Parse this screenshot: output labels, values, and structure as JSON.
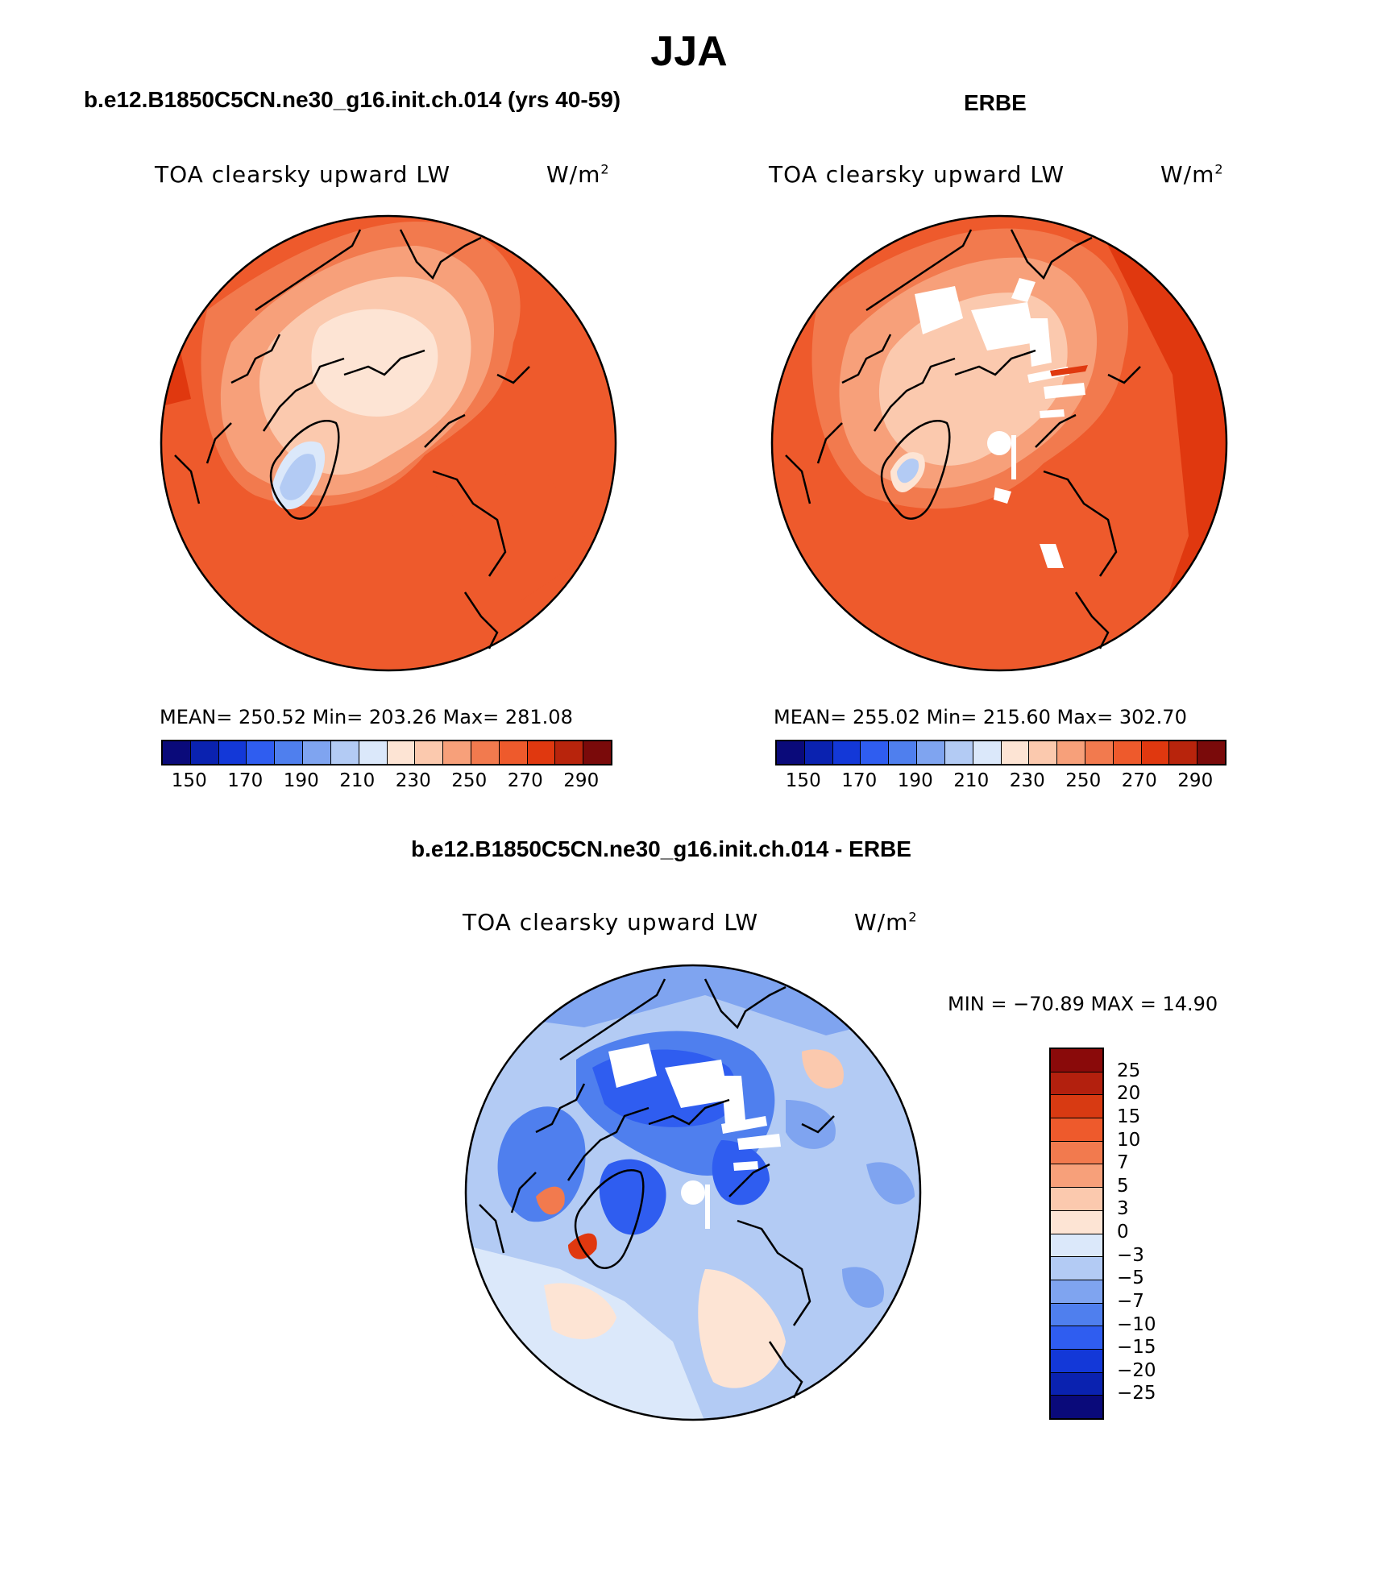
{
  "main_title": "JJA",
  "panels": {
    "model": {
      "heading": "b.e12.B1850C5CN.ne30_g16.init.ch.014 (yrs 40-59)",
      "field_label": "TOA clearsky upward LW",
      "units": "W/m",
      "units_sup": "2",
      "stats": "MEAN= 250.52   Min= 203.26   Max= 281.08"
    },
    "obs": {
      "heading": "ERBE",
      "field_label": "TOA clearsky upward LW",
      "units": "W/m",
      "units_sup": "2",
      "stats": "MEAN= 255.02   Min= 215.60   Max= 302.70"
    },
    "diff": {
      "heading": "b.e12.B1850C5CN.ne30_g16.init.ch.014 - ERBE",
      "field_label": "TOA clearsky upward LW",
      "units": "W/m",
      "units_sup": "2",
      "minmax": "MIN = −70.89 MAX =   14.90"
    }
  },
  "abs_colorbar": {
    "ticks": [
      "150",
      "170",
      "190",
      "210",
      "230",
      "250",
      "270",
      "290"
    ],
    "colors": [
      "#0a0a7a",
      "#0a22b0",
      "#1338d8",
      "#2f5df0",
      "#4f7fee",
      "#7fa4f0",
      "#b3cbf4",
      "#dbe8fa",
      "#fde4d4",
      "#fbc9ae",
      "#f7a07a",
      "#f27a4e",
      "#ee5a2c",
      "#e0380f",
      "#b8240c",
      "#7a0a0a"
    ]
  },
  "diff_colorbar": {
    "ticks": [
      "25",
      "20",
      "15",
      "10",
      "7",
      "5",
      "3",
      "0",
      "−3",
      "−5",
      "−7",
      "−10",
      "−15",
      "−20",
      "−25"
    ],
    "colors": [
      "#8a0a0a",
      "#b3200e",
      "#d83a12",
      "#ee5a2c",
      "#f27a4e",
      "#f7a07a",
      "#fbc9ae",
      "#fde4d4",
      "#dbe8fa",
      "#b3cbf4",
      "#7fa4f0",
      "#4f7fee",
      "#2f5df0",
      "#1338d8",
      "#0a22b0",
      "#0a0a7a"
    ]
  }
}
